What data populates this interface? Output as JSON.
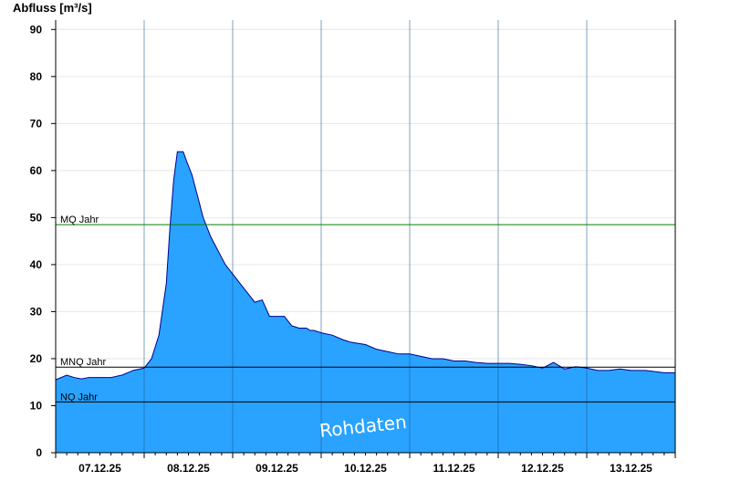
{
  "chart_data": {
    "type": "area",
    "ylabel": "Abfluss [m³/s]",
    "xlabel": "",
    "ylim": [
      0,
      92
    ],
    "yticks": [
      0,
      10,
      20,
      30,
      40,
      50,
      60,
      70,
      80,
      90
    ],
    "xlim": [
      "07.12.25 00:00",
      "14.12.25 00:00"
    ],
    "xtick_labels": [
      "07.12.25",
      "08.12.25",
      "09.12.25",
      "10.12.25",
      "11.12.25",
      "12.12.25",
      "13.12.25"
    ],
    "day_boundaries": [
      "08.12.25",
      "09.12.25",
      "10.12.25",
      "11.12.25",
      "12.12.25",
      "13.12.25"
    ],
    "grid": true,
    "fill_color": "#29a3ff",
    "line_color": "#00008b",
    "x_hours": [
      0,
      3,
      5,
      7,
      9,
      12,
      15,
      18,
      21,
      24,
      26,
      28,
      30,
      31,
      32,
      33,
      34,
      34.6,
      35.5,
      37,
      38,
      39,
      40,
      41,
      42,
      43,
      44,
      45,
      46,
      48,
      50,
      52,
      54,
      56,
      58,
      60,
      62,
      63,
      64,
      66,
      68,
      69,
      70,
      72,
      75,
      78,
      80,
      84,
      87,
      90,
      93,
      96,
      99,
      102,
      105,
      108,
      111,
      114,
      117,
      120,
      123,
      126,
      129,
      132,
      135,
      138,
      141,
      144,
      147,
      150,
      153,
      156,
      160,
      165,
      168
    ],
    "values": [
      15.5,
      16.5,
      16,
      15.7,
      16,
      16,
      16,
      16.5,
      17.5,
      18,
      20,
      25,
      36,
      48,
      58,
      64,
      64,
      64,
      62,
      59,
      56,
      53,
      50,
      48,
      46,
      44.5,
      43,
      41.5,
      40,
      38,
      36,
      34,
      32,
      32.5,
      29,
      29,
      29,
      28,
      27,
      26.5,
      26.5,
      26,
      26,
      25.5,
      25,
      24,
      23.5,
      23,
      22,
      21.5,
      21,
      21,
      20.5,
      20,
      20,
      19.5,
      19.5,
      19.2,
      19,
      19,
      19,
      18.8,
      18.5,
      18,
      19.2,
      17.8,
      18.3,
      18,
      17.5,
      17.5,
      17.8,
      17.5,
      17.5,
      17,
      17
    ],
    "reference_lines": [
      {
        "name": "MQ Jahr",
        "value": 48.5,
        "color": "#008000"
      },
      {
        "name": "MNQ Jahr",
        "value": 18.2,
        "color": "#000000"
      },
      {
        "name": "NQ Jahr",
        "value": 10.8,
        "color": "#000000"
      }
    ],
    "watermark": "Rohdaten"
  }
}
